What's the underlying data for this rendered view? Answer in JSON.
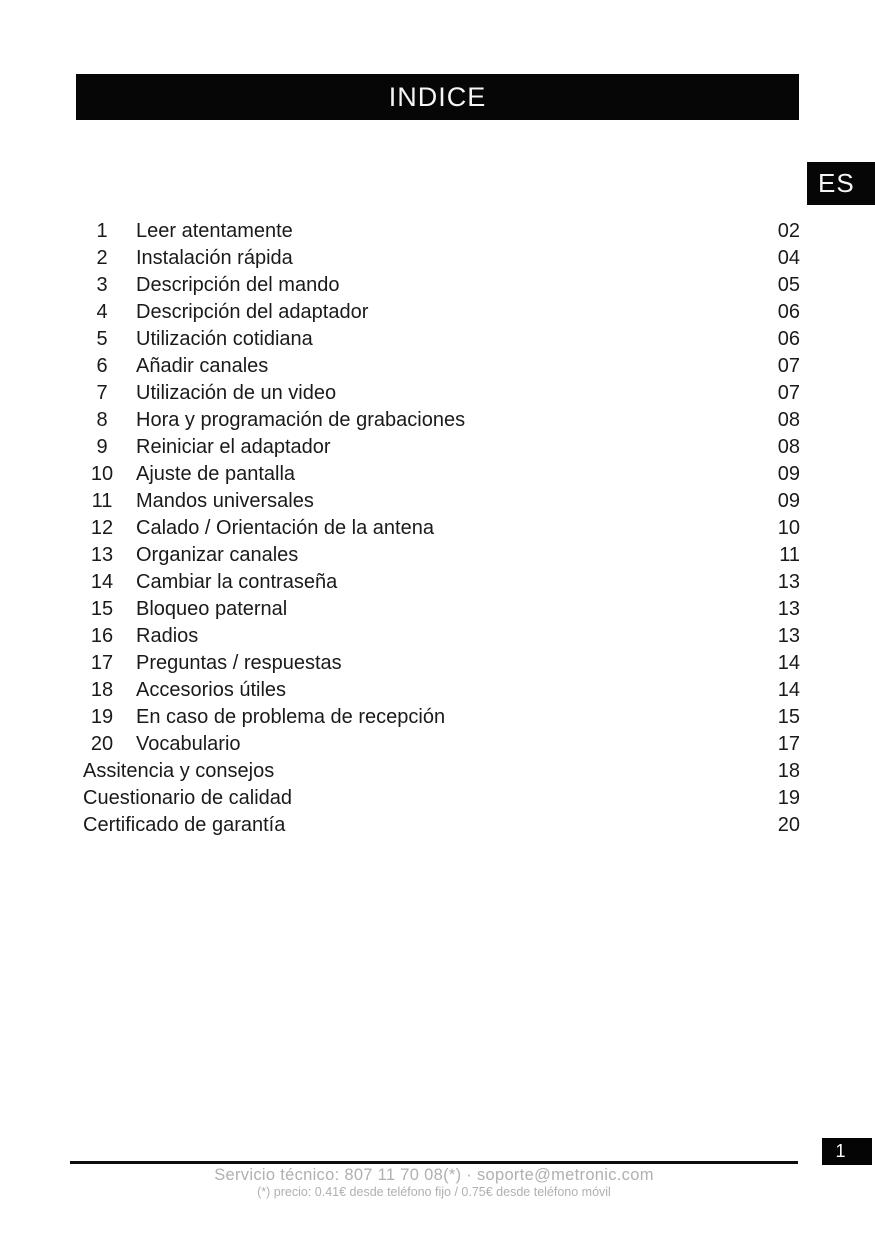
{
  "header": {
    "title": "INDICE"
  },
  "language_badge": "ES",
  "toc": {
    "entries": [
      {
        "num": "1",
        "title": "Leer atentamente",
        "page": "02"
      },
      {
        "num": "2",
        "title": "Instalación rápida",
        "page": "04"
      },
      {
        "num": "3",
        "title": "Descripción del mando",
        "page": "05"
      },
      {
        "num": "4",
        "title": "Descripción del adaptador",
        "page": "06"
      },
      {
        "num": "5",
        "title": "Utilización cotidiana",
        "page": "06"
      },
      {
        "num": "6",
        "title": "Añadir canales",
        "page": "07"
      },
      {
        "num": "7",
        "title": "Utilización de un video",
        "page": "07"
      },
      {
        "num": "8",
        "title": "Hora y programación de grabaciones",
        "page": "08"
      },
      {
        "num": "9",
        "title": "Reiniciar el adaptador",
        "page": "08"
      },
      {
        "num": "10",
        "title": "Ajuste de pantalla",
        "page": "09"
      },
      {
        "num": "11",
        "title": "Mandos universales",
        "page": "09"
      },
      {
        "num": "12",
        "title": "Calado / Orientación de la antena",
        "page": "10"
      },
      {
        "num": "13",
        "title": "Organizar canales",
        "page": "11"
      },
      {
        "num": "14",
        "title": "Cambiar la contraseña",
        "page": "13"
      },
      {
        "num": "15",
        "title": "Bloqueo paternal",
        "page": "13"
      },
      {
        "num": "16",
        "title": "Radios",
        "page": "13"
      },
      {
        "num": "17",
        "title": "Preguntas / respuestas",
        "page": "14"
      },
      {
        "num": "18",
        "title": "Accesorios útiles",
        "page": "14"
      },
      {
        "num": "19",
        "title": "En caso de problema de recepción",
        "page": "15"
      },
      {
        "num": "20",
        "title": "Vocabulario",
        "page": "17"
      },
      {
        "num": "",
        "title": "Assitencia y consejos",
        "page": "18"
      },
      {
        "num": "",
        "title": "Cuestionario de calidad",
        "page": "19"
      },
      {
        "num": "",
        "title": "Certificado de garantía",
        "page": "20"
      }
    ]
  },
  "footer": {
    "service_line": "Servicio técnico: 807 11 70 08(*) · soporte@metronic.com",
    "price_line": "(*) precio: 0.41€ desde teléfono fijo / 0.75€ desde teléfono móvil",
    "page_number": "1"
  },
  "colors": {
    "bar_black": "#060606",
    "ink": "#1a1a1a",
    "footer_gray": "#b0b0b0"
  }
}
